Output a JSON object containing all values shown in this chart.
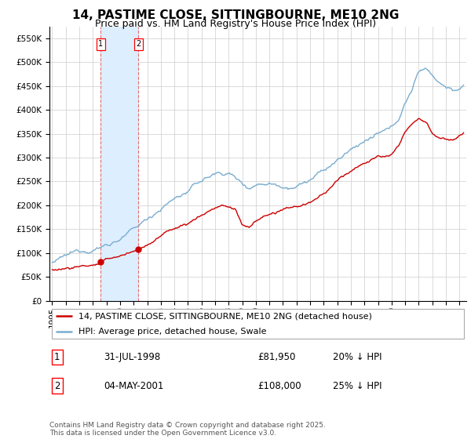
{
  "title": "14, PASTIME CLOSE, SITTINGBOURNE, ME10 2NG",
  "subtitle": "Price paid vs. HM Land Registry's House Price Index (HPI)",
  "legend_line1": "14, PASTIME CLOSE, SITTINGBOURNE, ME10 2NG (detached house)",
  "legend_line2": "HPI: Average price, detached house, Swale",
  "footer": "Contains HM Land Registry data © Crown copyright and database right 2025.\nThis data is licensed under the Open Government Licence v3.0.",
  "point1_label": "1",
  "point1_date": "31-JUL-1998",
  "point1_price": "£81,950",
  "point1_hpi": "20% ↓ HPI",
  "point1_x": 1998.58,
  "point1_y": 81950,
  "point2_label": "2",
  "point2_date": "04-MAY-2001",
  "point2_price": "£108,000",
  "point2_hpi": "25% ↓ HPI",
  "point2_x": 2001.34,
  "point2_y": 108000,
  "ylim": [
    0,
    575000
  ],
  "xlim": [
    1994.8,
    2025.5
  ],
  "red_color": "#cc0000",
  "blue_color": "#7aadcf",
  "shade_color": "#ddeeff",
  "vline_color": "#e87070",
  "background_color": "#ffffff",
  "grid_color": "#cccccc",
  "title_fontsize": 11,
  "subtitle_fontsize": 9,
  "tick_fontsize": 7.5,
  "legend_fontsize": 8,
  "footer_fontsize": 6.5
}
